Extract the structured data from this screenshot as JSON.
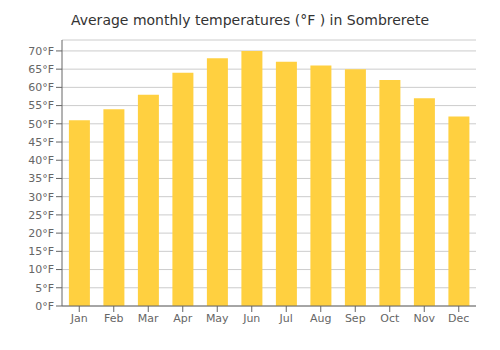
{
  "chart_data": {
    "type": "bar",
    "title": "Average monthly temperatures (°F ) in Sombrerete",
    "categories": [
      "Jan",
      "Feb",
      "Mar",
      "Apr",
      "May",
      "Jun",
      "Jul",
      "Aug",
      "Sep",
      "Oct",
      "Nov",
      "Dec"
    ],
    "values": [
      51,
      54,
      58,
      64,
      68,
      70,
      67,
      66,
      65,
      62,
      57,
      52
    ],
    "color": "#FFD040",
    "ylim": [
      0,
      73
    ],
    "yticks": [
      {
        "value": 0,
        "label": "0°F"
      },
      {
        "value": 5,
        "label": "5°F"
      },
      {
        "value": 10,
        "label": "10°F"
      },
      {
        "value": 15,
        "label": "15°F"
      },
      {
        "value": 20,
        "label": "20°F"
      },
      {
        "value": 25,
        "label": "25°F"
      },
      {
        "value": 30,
        "label": "30°F"
      },
      {
        "value": 35,
        "label": "35°F"
      },
      {
        "value": 40,
        "label": "40°F"
      },
      {
        "value": 45,
        "label": "45°F"
      },
      {
        "value": 50,
        "label": "50°F"
      },
      {
        "value": 55,
        "label": "55°F"
      },
      {
        "value": 60,
        "label": "60°F"
      },
      {
        "value": 65,
        "label": "65°F"
      },
      {
        "value": 70,
        "label": "70°F"
      }
    ],
    "grid": true
  }
}
